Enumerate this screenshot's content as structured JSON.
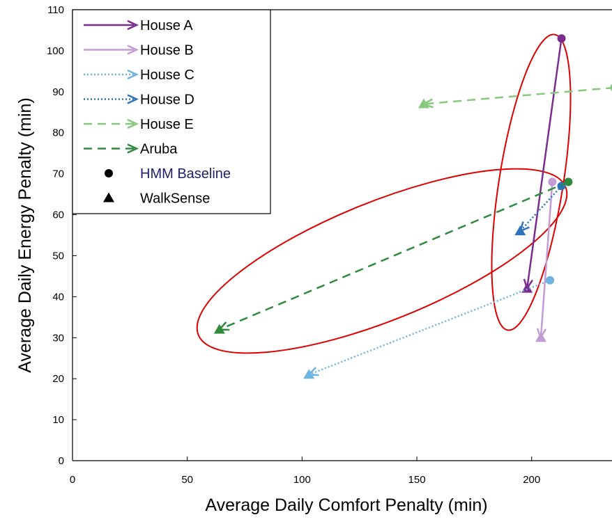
{
  "chart_data": {
    "type": "scatter",
    "title": "",
    "xlabel": "Average Daily Comfort Penalty (min)",
    "ylabel": "Average Daily Energy Penalty (min)",
    "xlim": [
      0,
      235
    ],
    "ylim": [
      0,
      110
    ],
    "xticks": [
      "0",
      "50",
      "100",
      "150",
      "200"
    ],
    "yticks": [
      "0",
      "10",
      "20",
      "30",
      "40",
      "50",
      "60",
      "70",
      "80",
      "90",
      "100",
      "110"
    ],
    "grid": false,
    "legend_position": "top-left",
    "series": [
      {
        "name": "House A",
        "color": "#7b2d8e",
        "style": "solid",
        "baseline": {
          "x": 213,
          "y": 103
        },
        "walksense": {
          "x": 198,
          "y": 42
        }
      },
      {
        "name": "House B",
        "color": "#c59bd6",
        "style": "solid",
        "baseline": {
          "x": 209,
          "y": 68
        },
        "walksense": {
          "x": 204,
          "y": 30
        }
      },
      {
        "name": "House C",
        "color": "#6fb3e0",
        "style": "dotted",
        "baseline": {
          "x": 208,
          "y": 44
        },
        "walksense": {
          "x": 103,
          "y": 21
        }
      },
      {
        "name": "House D",
        "color": "#2d74b8",
        "style": "dotted",
        "baseline": {
          "x": 213,
          "y": 67
        },
        "walksense": {
          "x": 195,
          "y": 56
        }
      },
      {
        "name": "House E",
        "color": "#86c97a",
        "style": "dashed",
        "baseline": {
          "x": 236,
          "y": 91
        },
        "walksense": {
          "x": 153,
          "y": 87
        }
      },
      {
        "name": "Aruba",
        "color": "#2e8b3e",
        "style": "dashed",
        "baseline": {
          "x": 216,
          "y": 68
        },
        "walksense": {
          "x": 64,
          "y": 32
        }
      }
    ],
    "markers": [
      {
        "name": "HMM Baseline",
        "shape": "circle",
        "label_color": "#1f1f6b"
      },
      {
        "name": "WalkSense",
        "shape": "triangle",
        "label_color": "#000000"
      }
    ],
    "annotations": [
      {
        "type": "ellipse",
        "color": "#e00000",
        "note": "highlight around House A, B, D"
      },
      {
        "type": "ellipse",
        "color": "#e00000",
        "note": "highlight around Aruba"
      }
    ]
  }
}
